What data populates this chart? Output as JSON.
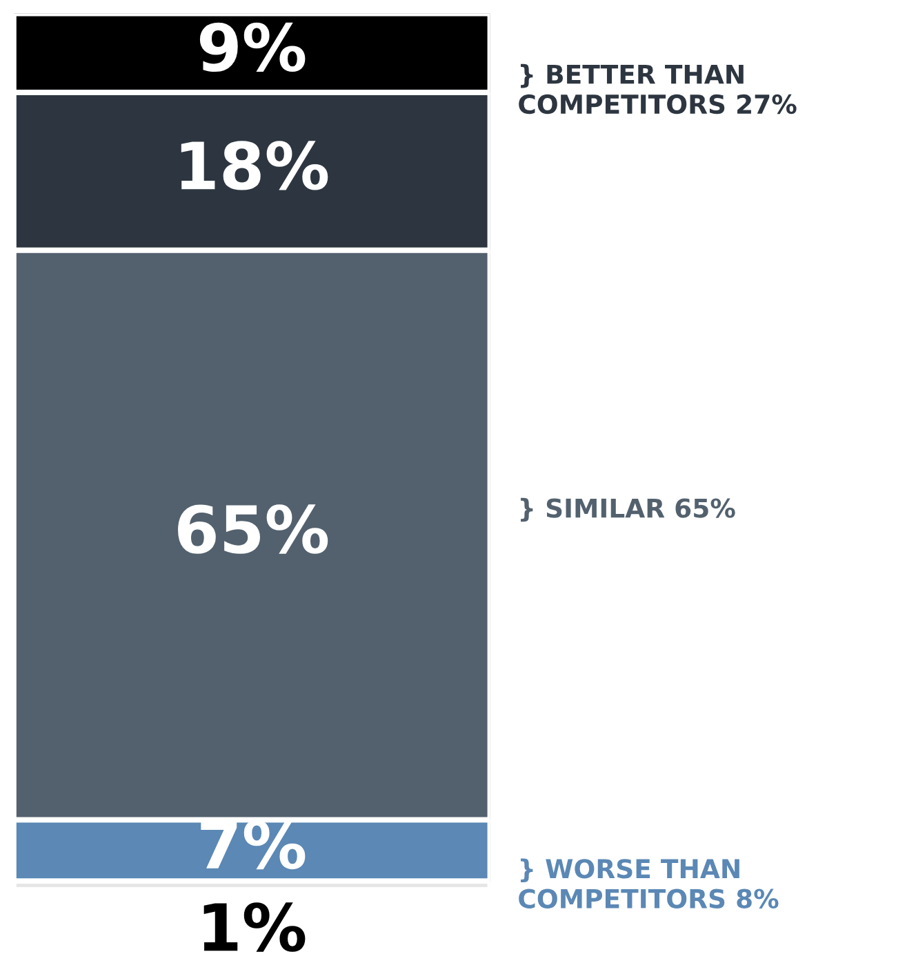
{
  "chart_data": {
    "type": "bar",
    "stacked": true,
    "categories": [
      null
    ],
    "series": [
      {
        "color": "#e6e6e6",
        "values": [
          1
        ],
        "value_labels": [
          "1%"
        ]
      },
      {
        "color": "#5b88b5",
        "values": [
          7
        ],
        "value_labels": [
          "7%"
        ]
      },
      {
        "color": "#53616e",
        "values": [
          65
        ],
        "value_labels": [
          "65%"
        ]
      },
      {
        "color": "#2d3640",
        "values": [
          18
        ],
        "value_labels": [
          "18%"
        ]
      },
      {
        "color": "#000000",
        "values": [
          9
        ],
        "value_labels": [
          "9%"
        ]
      }
    ],
    "legend": false,
    "tick_labels": false,
    "annotations": [
      "} BETTER THAN\nCOMPETITORS 27%",
      "} SIMILAR 65%",
      "} WORSE THAN\nCOMPETITORS 8%"
    ]
  }
}
